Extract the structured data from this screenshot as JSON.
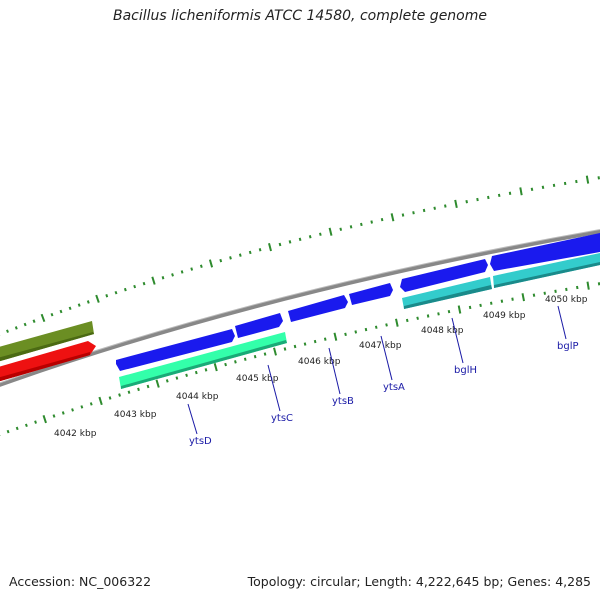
{
  "title": "Bacillus licheniformis ATCC 14580, complete genome",
  "footer": {
    "accession": "Accession: NC_006322",
    "summary": "Topology: circular; Length: 4,222,645 bp; Genes: 4,285"
  },
  "colors": {
    "backbone": "#8a8a8a",
    "tick_dots": "#2e8b2e",
    "forward_gene": "#1a1aee",
    "cds_cyan": "#33cccc",
    "cds_mint": "#33ffaa",
    "olive_feature": "#6b8e23",
    "red_feature": "#ee1111",
    "gene_label": "#1a1aa6"
  },
  "scale_labels": [
    "4042 kbp",
    "4043 kbp",
    "4044 kbp",
    "4045 kbp",
    "4046 kbp",
    "4047 kbp",
    "4048 kbp",
    "4049 kbp",
    "4050 kbp"
  ],
  "genes": [
    "ytsD",
    "ytsC",
    "ytsB",
    "ytsA",
    "bglH",
    "bglP"
  ]
}
